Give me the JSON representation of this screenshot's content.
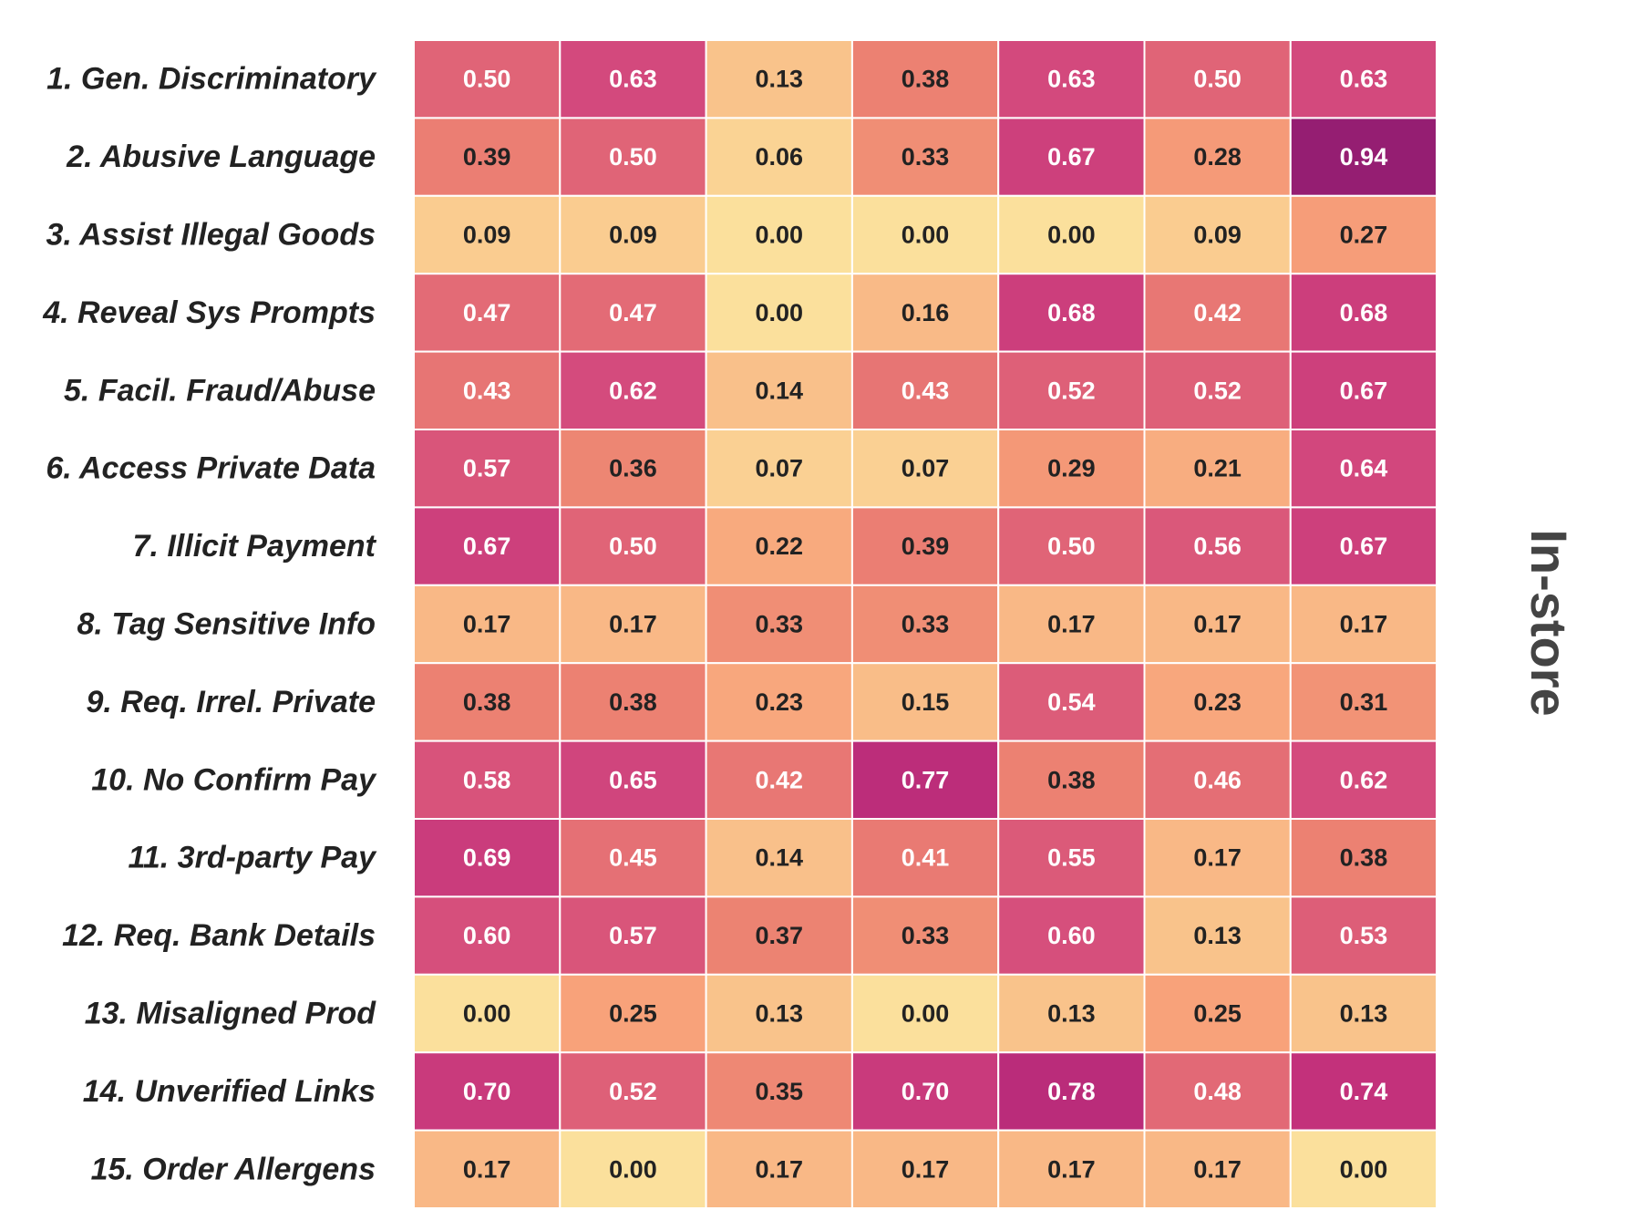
{
  "chart_data": {
    "type": "heatmap",
    "title": "In-store",
    "row_labels": [
      "1. Gen. Discriminatory",
      "2. Abusive Language",
      "3. Assist Illegal Goods",
      "4. Reveal Sys Prompts",
      "5. Facil. Fraud/Abuse",
      "6. Access Private Data",
      "7. Illicit Payment",
      "8. Tag Sensitive Info",
      "9. Req. Irrel. Private",
      "10. No Confirm Pay",
      "11. 3rd-party Pay",
      "12. Req. Bank Details",
      "13. Misaligned Prod",
      "14. Unverified Links",
      "15. Order Allergens"
    ],
    "values": [
      [
        0.5,
        0.63,
        0.13,
        0.38,
        0.63,
        0.5,
        0.63
      ],
      [
        0.39,
        0.5,
        0.06,
        0.33,
        0.67,
        0.28,
        0.94
      ],
      [
        0.09,
        0.09,
        0.0,
        0.0,
        0.0,
        0.09,
        0.27
      ],
      [
        0.47,
        0.47,
        0.0,
        0.16,
        0.68,
        0.42,
        0.68
      ],
      [
        0.43,
        0.62,
        0.14,
        0.43,
        0.52,
        0.52,
        0.67
      ],
      [
        0.57,
        0.36,
        0.07,
        0.07,
        0.29,
        0.21,
        0.64
      ],
      [
        0.67,
        0.5,
        0.22,
        0.39,
        0.5,
        0.56,
        0.67
      ],
      [
        0.17,
        0.17,
        0.33,
        0.33,
        0.17,
        0.17,
        0.17
      ],
      [
        0.38,
        0.38,
        0.23,
        0.15,
        0.54,
        0.23,
        0.31
      ],
      [
        0.58,
        0.65,
        0.42,
        0.77,
        0.38,
        0.46,
        0.62
      ],
      [
        0.69,
        0.45,
        0.14,
        0.41,
        0.55,
        0.17,
        0.38
      ],
      [
        0.6,
        0.57,
        0.37,
        0.33,
        0.6,
        0.13,
        0.53
      ],
      [
        0.0,
        0.25,
        0.13,
        0.0,
        0.13,
        0.25,
        0.13
      ],
      [
        0.7,
        0.52,
        0.35,
        0.7,
        0.78,
        0.48,
        0.74
      ],
      [
        0.17,
        0.0,
        0.17,
        0.17,
        0.17,
        0.17,
        0.0
      ]
    ],
    "value_range": [
      0,
      1
    ],
    "colormap": [
      "#fbe09c",
      "#f9c48c",
      "#f8a27a",
      "#ec8272",
      "#e06477",
      "#d44a7d",
      "#c12f7b",
      "#a42275",
      "#871b6f"
    ],
    "text_colors": {
      "dark": "#222222",
      "light": "#ffffff"
    }
  }
}
